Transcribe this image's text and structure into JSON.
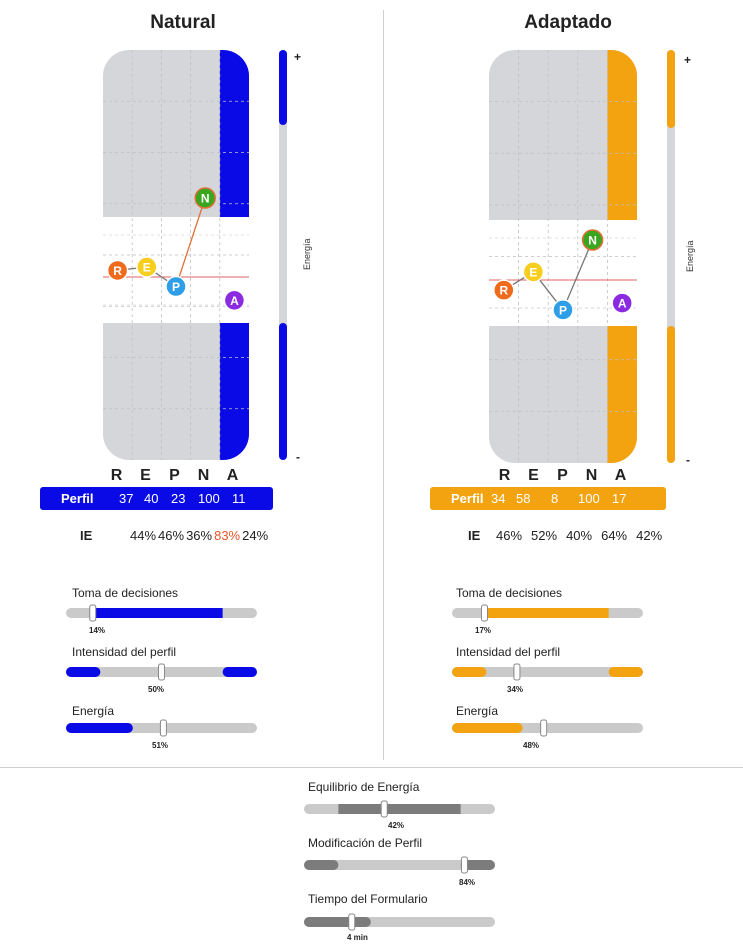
{
  "natural": {
    "title": "Natural",
    "accent": "#0a0ae6",
    "letters": [
      "R",
      "E",
      "P",
      "N",
      "A"
    ],
    "perfil_label": "Perfil",
    "perfil_values": [
      "37",
      "40",
      "23",
      "100",
      "11"
    ],
    "ie_label": "IE",
    "ie_values": [
      "44%",
      "46%",
      "36%",
      "83%",
      "24%"
    ],
    "ie_highlight_index": 3,
    "ie_highlight_color": "#e8552b",
    "energy_label": "Energía",
    "plus": "+",
    "minus": "-",
    "metrics": [
      {
        "label": "Toma de decisiones",
        "pct": "14%",
        "value": 14
      },
      {
        "label": "Intensidad del perfil",
        "pct": "50%",
        "value": 50
      },
      {
        "label": "Energía",
        "pct": "51%",
        "value": 51
      }
    ]
  },
  "adaptado": {
    "title": "Adaptado",
    "accent": "#f2a30f",
    "letters": [
      "R",
      "E",
      "P",
      "N",
      "A"
    ],
    "perfil_label": "Perfil",
    "perfil_values": [
      "34",
      "58",
      "8",
      "100",
      "17"
    ],
    "ie_label": "IE",
    "ie_values": [
      "46%",
      "52%",
      "40%",
      "64%",
      "42%"
    ],
    "energy_label": "Energía",
    "plus": "+",
    "minus": "-",
    "metrics": [
      {
        "label": "Toma de decisiones",
        "pct": "17%",
        "value": 17
      },
      {
        "label": "Intensidad del perfil",
        "pct": "34%",
        "value": 34
      },
      {
        "label": "Energía",
        "pct": "48%",
        "value": 48
      }
    ]
  },
  "summary": [
    {
      "label": "Equilibrio de Energía",
      "pct": "42%",
      "value": 42
    },
    {
      "label": "Modificación de Perfil",
      "pct": "84%",
      "value": 84
    },
    {
      "label": "Tiempo del Formulario",
      "pct": "4 min",
      "value": 25
    }
  ],
  "chart_data": [
    {
      "type": "line",
      "title": "Natural",
      "categories": [
        "R",
        "E",
        "P",
        "N",
        "A"
      ],
      "series": [
        {
          "name": "Perfil",
          "values": [
            37,
            40,
            23,
            100,
            11
          ]
        }
      ],
      "ylabel": "Energía"
    },
    {
      "type": "line",
      "title": "Adaptado",
      "categories": [
        "R",
        "E",
        "P",
        "N",
        "A"
      ],
      "series": [
        {
          "name": "Perfil",
          "values": [
            34,
            58,
            8,
            100,
            17
          ]
        }
      ],
      "ylabel": "Energía"
    }
  ],
  "node_colors": {
    "R": "#f06a1c",
    "E": "#f7cd1e",
    "P": "#2f9ee8",
    "N": "#3aa61f",
    "A": "#8a2be2"
  }
}
